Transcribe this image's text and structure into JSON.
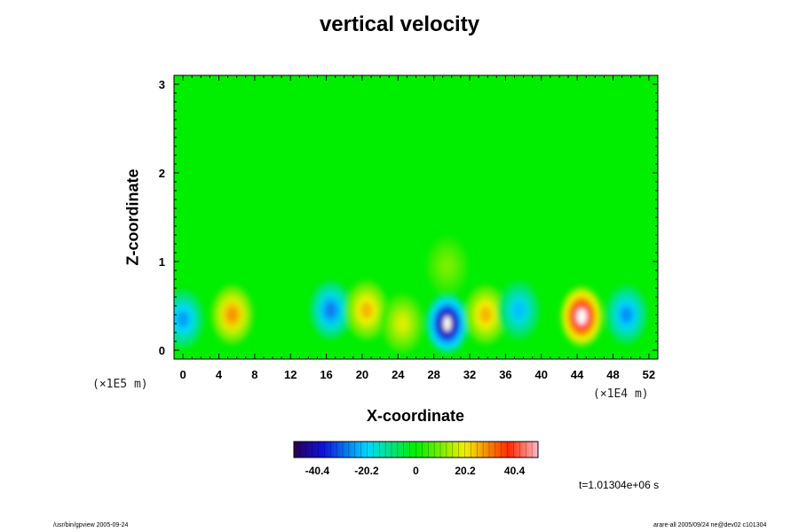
{
  "chart_data": {
    "type": "heatmap",
    "title": "vertical velocity",
    "xlabel": "X-coordinate",
    "ylabel": "Z-coordinate",
    "x_scale_note": "(×1E4 m)",
    "y_scale_note": "(×1E5 m)",
    "xlim": [
      -1,
      53
    ],
    "ylim": [
      -0.1,
      3.1
    ],
    "x_ticks": [
      0,
      4,
      8,
      12,
      16,
      20,
      24,
      28,
      32,
      36,
      40,
      44,
      48,
      52
    ],
    "y_ticks": [
      0,
      1,
      2,
      3
    ],
    "colorbar": {
      "min": -50,
      "max": 50,
      "tick_values": [
        -40.4,
        -20.2,
        0,
        20.2,
        40.4
      ],
      "tick_labels": [
        "-40.4",
        "-20.2",
        "0",
        "20.2",
        "40.4"
      ]
    },
    "features": [
      {
        "x": 0,
        "z": 0.35,
        "value": -25
      },
      {
        "x": 5.5,
        "z": 0.4,
        "value": 28
      },
      {
        "x": 16.5,
        "z": 0.45,
        "value": -28
      },
      {
        "x": 20.5,
        "z": 0.45,
        "value": 25
      },
      {
        "x": 24.5,
        "z": 0.3,
        "value": 18
      },
      {
        "x": 29.5,
        "z": 0.3,
        "value": -50
      },
      {
        "x": 29.5,
        "z": 0.95,
        "value": 10
      },
      {
        "x": 33.8,
        "z": 0.4,
        "value": 25
      },
      {
        "x": 37.5,
        "z": 0.45,
        "value": -22
      },
      {
        "x": 44.5,
        "z": 0.38,
        "value": 50
      },
      {
        "x": 49.5,
        "z": 0.4,
        "value": -26
      }
    ],
    "grid": false,
    "legend": "colorbar bottom-center"
  },
  "annotations": {
    "time": "t=1.01304e+06 s",
    "footer_left": "/usr/bin/gpview 2005-09-24",
    "footer_right": "arare-all 2005/09/24 ne@dev02 c101304"
  }
}
